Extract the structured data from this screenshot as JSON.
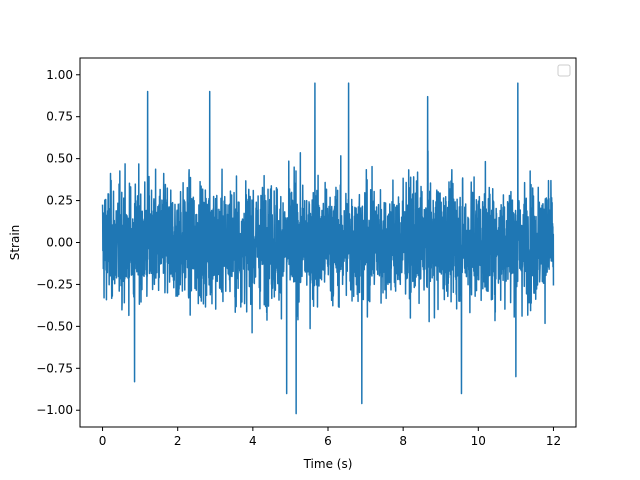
{
  "chart_data": {
    "type": "line",
    "title": "",
    "xlabel": "Time (s)",
    "ylabel": "Strain",
    "xlim": [
      -0.6,
      12.6
    ],
    "ylim": [
      -1.1,
      1.1
    ],
    "xticks": [
      0,
      2,
      4,
      6,
      8,
      10,
      12
    ],
    "xtick_labels": [
      "0",
      "2",
      "4",
      "6",
      "8",
      "10",
      "12"
    ],
    "yticks": [
      -1.0,
      -0.75,
      -0.5,
      -0.25,
      0.0,
      0.25,
      0.5,
      0.75,
      1.0
    ],
    "ytick_labels": [
      "−1.00",
      "−0.75",
      "−0.50",
      "−0.25",
      "0.00",
      "0.25",
      "0.50",
      "0.75",
      "1.00"
    ],
    "grid": false,
    "legend": {
      "placement": "top-right",
      "entries": []
    },
    "series": [
      {
        "color": "#1f77b4",
        "x_range": [
          0,
          12
        ],
        "y_min": -1.02,
        "y_max": 0.95,
        "notable_peaks": [
          {
            "x": 1.2,
            "y": 0.9
          },
          {
            "x": 2.85,
            "y": 0.9
          },
          {
            "x": 5.65,
            "y": 0.95
          },
          {
            "x": 6.55,
            "y": 0.95
          },
          {
            "x": 8.65,
            "y": 0.87
          },
          {
            "x": 11.05,
            "y": 0.95
          }
        ],
        "notable_troughs": [
          {
            "x": 0.85,
            "y": -0.83
          },
          {
            "x": 4.9,
            "y": -0.9
          },
          {
            "x": 5.15,
            "y": -1.02
          },
          {
            "x": 6.9,
            "y": -0.96
          },
          {
            "x": 9.55,
            "y": -0.9
          },
          {
            "x": 11.0,
            "y": -0.8
          }
        ]
      }
    ]
  }
}
